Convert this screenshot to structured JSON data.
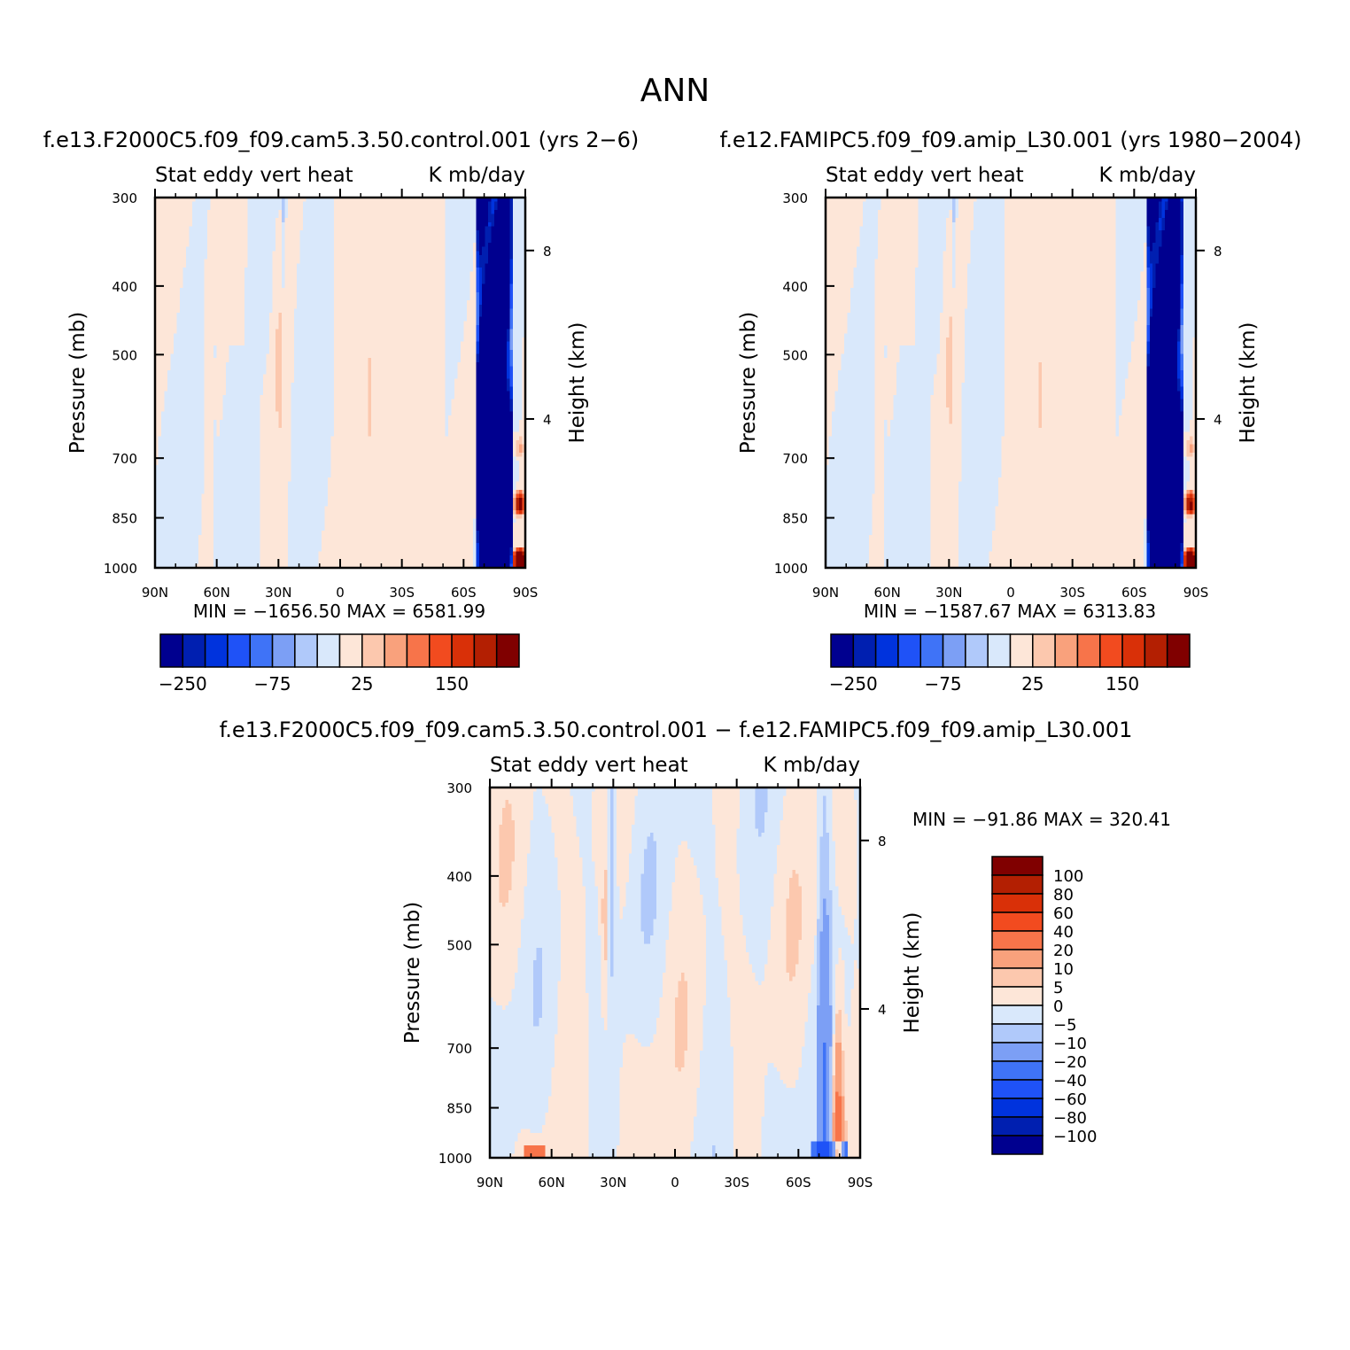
{
  "page_title": "ANN",
  "chart_data": [
    {
      "type": "heatmap",
      "id": "control",
      "title": "f.e13.F2000C5.f09_f09.cam5.3.50.control.001 (yrs 2-6)",
      "left_label": "Stat eddy vert heat",
      "right_label": "K mb/day",
      "ylabel": "Pressure (mb)",
      "ylabel_right": "Height (km)",
      "x_ticks": [
        "90N",
        "60N",
        "30N",
        "0",
        "30S",
        "60S",
        "90S"
      ],
      "x_range": [
        90,
        -90
      ],
      "y_ticks": [
        "300",
        "400",
        "500",
        "700",
        "850",
        "1000"
      ],
      "y_tick_values": [
        300,
        400,
        500,
        700,
        850,
        1000
      ],
      "y_range": [
        300,
        1000
      ],
      "height_ticks": [
        "8",
        "4"
      ],
      "min_max": "MIN = -1656.50   MAX = 6581.99",
      "levels": [
        -250,
        -200,
        -150,
        -100,
        -75,
        -50,
        -25,
        0,
        25,
        50,
        75,
        100,
        150,
        200,
        250
      ],
      "colorbar_labels": [
        "-250",
        "-75",
        "25",
        "150"
      ],
      "field_scale": 1,
      "colors": [
        "#00008f",
        "#001fb0",
        "#0033dd",
        "#1f52f7",
        "#3f73f7",
        "#7c9ff5",
        "#b0c9fa",
        "#d9e8fb",
        "#fde6d8",
        "#fcc8ae",
        "#f9a17c",
        "#f7744a",
        "#f24b1f",
        "#d93008",
        "#b31f02",
        "#800000"
      ]
    },
    {
      "type": "heatmap",
      "id": "amip",
      "title": "f.e12.FAMIPC5.f09_f09.amip_L30.001 (yrs 1980-2004)",
      "left_label": "Stat eddy vert heat",
      "right_label": "K mb/day",
      "ylabel": "Pressure (mb)",
      "ylabel_right": "Height (km)",
      "x_ticks": [
        "90N",
        "60N",
        "30N",
        "0",
        "30S",
        "60S",
        "90S"
      ],
      "x_range": [
        90,
        -90
      ],
      "y_ticks": [
        "300",
        "400",
        "500",
        "700",
        "850",
        "1000"
      ],
      "y_tick_values": [
        300,
        400,
        500,
        700,
        850,
        1000
      ],
      "y_range": [
        300,
        1000
      ],
      "height_ticks": [
        "8",
        "4"
      ],
      "min_max": "MIN = -1587.67   MAX = 6313.83",
      "levels": [
        -250,
        -200,
        -150,
        -100,
        -75,
        -50,
        -25,
        0,
        25,
        50,
        75,
        100,
        150,
        200,
        250
      ],
      "colorbar_labels": [
        "-250",
        "-75",
        "25",
        "150"
      ],
      "field_scale": 0.97,
      "colors": [
        "#00008f",
        "#001fb0",
        "#0033dd",
        "#1f52f7",
        "#3f73f7",
        "#7c9ff5",
        "#b0c9fa",
        "#d9e8fb",
        "#fde6d8",
        "#fcc8ae",
        "#f9a17c",
        "#f7744a",
        "#f24b1f",
        "#d93008",
        "#b31f02",
        "#800000"
      ]
    },
    {
      "type": "heatmap",
      "id": "difference",
      "title": "f.e13.F2000C5.f09_f09.cam5.3.50.control.001 - f.e12.FAMIPC5.f09_f09.amip_L30.001",
      "left_label": "Stat eddy vert heat",
      "right_label": "K mb/day",
      "ylabel": "Pressure (mb)",
      "ylabel_right": "Height (km)",
      "x_ticks": [
        "90N",
        "60N",
        "30N",
        "0",
        "30S",
        "60S",
        "90S"
      ],
      "x_range": [
        90,
        -90
      ],
      "y_ticks": [
        "300",
        "400",
        "500",
        "700",
        "850",
        "1000"
      ],
      "y_tick_values": [
        300,
        400,
        500,
        700,
        850,
        1000
      ],
      "y_range": [
        300,
        1000
      ],
      "height_ticks": [
        "8",
        "4"
      ],
      "min_max": "MIN = -91.86   MAX = 320.41",
      "levels": [
        -100,
        -80,
        -60,
        -40,
        -20,
        -10,
        -5,
        0,
        5,
        10,
        20,
        40,
        60,
        80,
        100
      ],
      "colorbar_labels": [
        "100",
        "80",
        "60",
        "40",
        "20",
        "10",
        "5",
        "0",
        "-5",
        "-10",
        "-20",
        "-40",
        "-60",
        "-80",
        "-100"
      ],
      "colors": [
        "#00008f",
        "#001fb0",
        "#0033dd",
        "#1f52f7",
        "#3f73f7",
        "#7c9ff5",
        "#b0c9fa",
        "#d9e8fb",
        "#fde6d8",
        "#fcc8ae",
        "#f9a17c",
        "#f7744a",
        "#f24b1f",
        "#d93008",
        "#b31f02",
        "#800000"
      ]
    }
  ]
}
